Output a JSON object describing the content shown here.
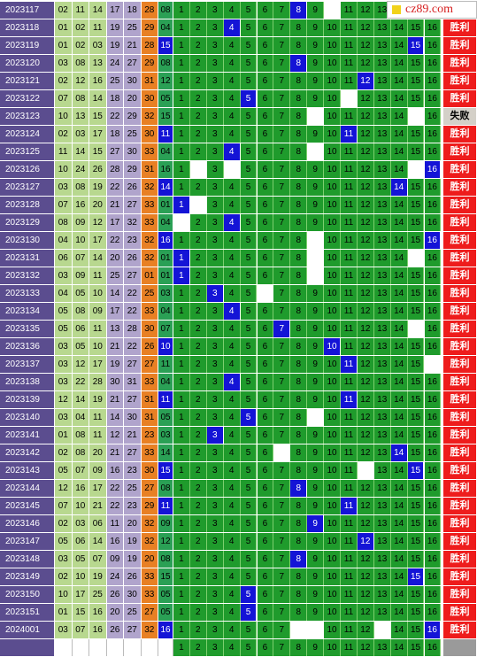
{
  "site": {
    "label": "cz89.com",
    "accent": "#d62020"
  },
  "colors": {
    "period_bg": "#5b4d8f",
    "grid_green": "#1f9b2c",
    "hit_blue": "#1414d6",
    "win_red": "#ee1c1c",
    "lose_grey": "#d4d0c8",
    "num_bg": [
      "#b8d88f",
      "#b8d88f",
      "#b8d88f",
      "#b0a4cc",
      "#b0a4cc",
      "#e88024"
    ],
    "last_bg": [
      "#2aa055",
      "#1414d6"
    ]
  },
  "rows": [
    {
      "period": "2023117",
      "nums": [
        "02",
        "11",
        "14",
        "17",
        "18",
        "28"
      ],
      "last": "08",
      "lastc": 0,
      "hit": 8,
      "blanks": [
        10
      ],
      "res": "胜利"
    },
    {
      "period": "2023118",
      "nums": [
        "01",
        "02",
        "11",
        "19",
        "25",
        "29"
      ],
      "last": "04",
      "lastc": 0,
      "hit": 4,
      "blanks": [],
      "res": "胜利"
    },
    {
      "period": "2023119",
      "nums": [
        "01",
        "02",
        "03",
        "19",
        "21",
        "28"
      ],
      "last": "15",
      "lastc": 1,
      "hit": 15,
      "blanks": [],
      "res": "胜利"
    },
    {
      "period": "2023120",
      "nums": [
        "03",
        "08",
        "13",
        "24",
        "27",
        "29"
      ],
      "last": "08",
      "lastc": 0,
      "hit": 8,
      "blanks": [],
      "res": "胜利"
    },
    {
      "period": "2023121",
      "nums": [
        "02",
        "12",
        "16",
        "25",
        "30",
        "31"
      ],
      "last": "12",
      "lastc": 0,
      "hit": 12,
      "blanks": [],
      "res": "胜利"
    },
    {
      "period": "2023122",
      "nums": [
        "07",
        "08",
        "14",
        "18",
        "20",
        "30"
      ],
      "last": "05",
      "lastc": 0,
      "hit": 5,
      "blanks": [
        11
      ],
      "res": "胜利"
    },
    {
      "period": "2023123",
      "nums": [
        "10",
        "13",
        "15",
        "22",
        "29",
        "32"
      ],
      "last": "15",
      "lastc": 0,
      "hit": 0,
      "blanks": [
        9,
        15
      ],
      "res": "失败"
    },
    {
      "period": "2023124",
      "nums": [
        "02",
        "03",
        "17",
        "18",
        "25",
        "30"
      ],
      "last": "11",
      "lastc": 1,
      "hit": 11,
      "blanks": [],
      "res": "胜利"
    },
    {
      "period": "2023125",
      "nums": [
        "11",
        "14",
        "15",
        "27",
        "30",
        "33"
      ],
      "last": "04",
      "lastc": 0,
      "hit": 4,
      "blanks": [
        9
      ],
      "res": "胜利"
    },
    {
      "period": "2023126",
      "nums": [
        "10",
        "24",
        "26",
        "28",
        "29",
        "31"
      ],
      "last": "16",
      "lastc": 0,
      "hit": 16,
      "blanks": [
        2,
        4,
        15
      ],
      "res": "胜利"
    },
    {
      "period": "2023127",
      "nums": [
        "03",
        "08",
        "19",
        "22",
        "26",
        "32"
      ],
      "last": "14",
      "lastc": 1,
      "hit": 14,
      "blanks": [],
      "res": "胜利"
    },
    {
      "period": "2023128",
      "nums": [
        "07",
        "16",
        "20",
        "21",
        "27",
        "33"
      ],
      "last": "01",
      "lastc": 0,
      "hit": 1,
      "blanks": [
        2
      ],
      "res": "胜利"
    },
    {
      "period": "2023129",
      "nums": [
        "08",
        "09",
        "12",
        "17",
        "32",
        "33"
      ],
      "last": "04",
      "lastc": 0,
      "hit": 4,
      "blanks": [
        1
      ],
      "res": "胜利"
    },
    {
      "period": "2023130",
      "nums": [
        "04",
        "10",
        "17",
        "22",
        "23",
        "32"
      ],
      "last": "16",
      "lastc": 1,
      "hit": 16,
      "blanks": [
        9
      ],
      "res": "胜利"
    },
    {
      "period": "2023131",
      "nums": [
        "06",
        "07",
        "14",
        "20",
        "26",
        "32"
      ],
      "last": "01",
      "lastc": 0,
      "hit": 1,
      "blanks": [
        9,
        15
      ],
      "res": "胜利"
    },
    {
      "period": "2023132",
      "nums": [
        "03",
        "09",
        "11",
        "25",
        "27",
        "01"
      ],
      "last": "01",
      "lastc": 0,
      "hit": 1,
      "blanks": [
        9
      ],
      "res": "胜利"
    },
    {
      "period": "2023133",
      "nums": [
        "04",
        "05",
        "10",
        "14",
        "22",
        "25"
      ],
      "last": "03",
      "lastc": 0,
      "hit": 3,
      "blanks": [
        6
      ],
      "res": "胜利"
    },
    {
      "period": "2023134",
      "nums": [
        "05",
        "08",
        "09",
        "17",
        "22",
        "33"
      ],
      "last": "04",
      "lastc": 0,
      "hit": 4,
      "blanks": [],
      "res": "胜利"
    },
    {
      "period": "2023135",
      "nums": [
        "05",
        "06",
        "11",
        "13",
        "28",
        "30"
      ],
      "last": "07",
      "lastc": 0,
      "hit": 7,
      "blanks": [
        15
      ],
      "res": "胜利"
    },
    {
      "period": "2023136",
      "nums": [
        "03",
        "05",
        "10",
        "21",
        "22",
        "26"
      ],
      "last": "10",
      "lastc": 1,
      "hit": 10,
      "blanks": [],
      "res": "胜利"
    },
    {
      "period": "2023137",
      "nums": [
        "03",
        "12",
        "17",
        "19",
        "27",
        "27"
      ],
      "last": "11",
      "lastc": 0,
      "hit": 11,
      "blanks": [
        16
      ],
      "res": "胜利"
    },
    {
      "period": "2023138",
      "nums": [
        "03",
        "22",
        "28",
        "30",
        "31",
        "33"
      ],
      "last": "04",
      "lastc": 0,
      "hit": 4,
      "blanks": [],
      "res": "胜利"
    },
    {
      "period": "2023139",
      "nums": [
        "12",
        "14",
        "19",
        "21",
        "27",
        "31"
      ],
      "last": "11",
      "lastc": 1,
      "hit": 11,
      "blanks": [],
      "res": "胜利"
    },
    {
      "period": "2023140",
      "nums": [
        "03",
        "04",
        "11",
        "14",
        "30",
        "31"
      ],
      "last": "05",
      "lastc": 0,
      "hit": 5,
      "blanks": [
        9
      ],
      "res": "胜利"
    },
    {
      "period": "2023141",
      "nums": [
        "01",
        "08",
        "11",
        "12",
        "21",
        "23"
      ],
      "last": "03",
      "lastc": 0,
      "hit": 3,
      "blanks": [],
      "res": "胜利"
    },
    {
      "period": "2023142",
      "nums": [
        "02",
        "08",
        "20",
        "21",
        "27",
        "33"
      ],
      "last": "14",
      "lastc": 0,
      "hit": 14,
      "blanks": [
        7
      ],
      "res": "胜利"
    },
    {
      "period": "2023143",
      "nums": [
        "05",
        "07",
        "09",
        "16",
        "23",
        "30"
      ],
      "last": "15",
      "lastc": 1,
      "hit": 15,
      "blanks": [
        12
      ],
      "res": "胜利"
    },
    {
      "period": "2023144",
      "nums": [
        "12",
        "16",
        "17",
        "22",
        "25",
        "27"
      ],
      "last": "08",
      "lastc": 0,
      "hit": 8,
      "blanks": [],
      "res": "胜利"
    },
    {
      "period": "2023145",
      "nums": [
        "07",
        "10",
        "21",
        "22",
        "23",
        "29"
      ],
      "last": "11",
      "lastc": 1,
      "hit": 11,
      "blanks": [],
      "res": "胜利"
    },
    {
      "period": "2023146",
      "nums": [
        "02",
        "03",
        "06",
        "11",
        "20",
        "32"
      ],
      "last": "09",
      "lastc": 0,
      "hit": 9,
      "blanks": [],
      "res": "胜利"
    },
    {
      "period": "2023147",
      "nums": [
        "05",
        "06",
        "14",
        "16",
        "19",
        "32"
      ],
      "last": "12",
      "lastc": 0,
      "hit": 12,
      "blanks": [],
      "res": "胜利"
    },
    {
      "period": "2023148",
      "nums": [
        "03",
        "05",
        "07",
        "09",
        "19",
        "20"
      ],
      "last": "08",
      "lastc": 0,
      "hit": 8,
      "blanks": [],
      "res": "胜利"
    },
    {
      "period": "2023149",
      "nums": [
        "02",
        "10",
        "19",
        "24",
        "26",
        "33"
      ],
      "last": "15",
      "lastc": 0,
      "hit": 15,
      "blanks": [],
      "res": "胜利"
    },
    {
      "period": "2023150",
      "nums": [
        "10",
        "17",
        "25",
        "26",
        "30",
        "33"
      ],
      "last": "05",
      "lastc": 0,
      "hit": 5,
      "blanks": [],
      "res": "胜利"
    },
    {
      "period": "2023151",
      "nums": [
        "01",
        "15",
        "16",
        "20",
        "25",
        "27"
      ],
      "last": "05",
      "lastc": 0,
      "hit": 5,
      "blanks": [],
      "res": "胜利"
    },
    {
      "period": "2024001",
      "nums": [
        "03",
        "07",
        "16",
        "26",
        "27",
        "32"
      ],
      "last": "16",
      "lastc": 1,
      "hit": 16,
      "blanks": [
        8,
        9,
        13
      ],
      "res": "胜利"
    }
  ],
  "footer": {
    "cols": [
      "1",
      "2",
      "3",
      "4",
      "5",
      "6",
      "7",
      "8",
      "9",
      "10",
      "11",
      "12",
      "13",
      "14",
      "15",
      "16"
    ]
  }
}
